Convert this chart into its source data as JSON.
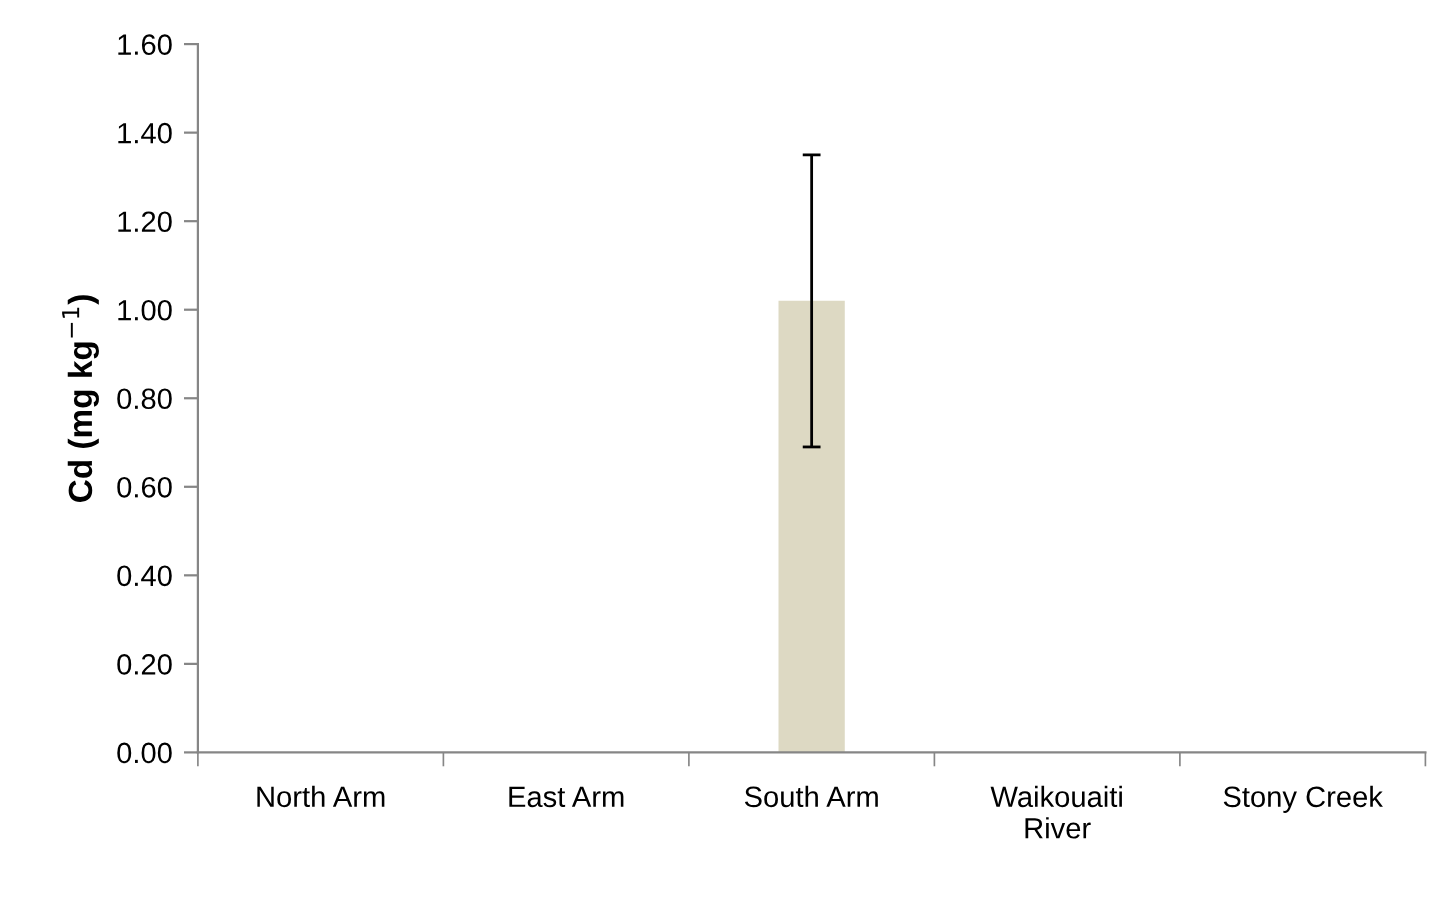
{
  "chart_data": {
    "type": "bar",
    "ylabel": "Cd (mg kg$^{−1}$)",
    "categories": [
      "North Arm",
      "East Arm",
      "South Arm",
      "Waikouaiti\nRiver",
      "Stony Creek"
    ],
    "values": [
      null,
      null,
      1.02,
      null,
      null
    ],
    "errors": [
      null,
      null,
      0.33,
      null,
      null
    ],
    "color": "#ddd9c3",
    "ylim": [
      0,
      1.6
    ],
    "yticks": [
      {
        "value": 0,
        "label": "0.00"
      },
      {
        "value": 0.2,
        "label": "0.20"
      },
      {
        "value": 0.4,
        "label": "0.40"
      },
      {
        "value": 0.6,
        "label": "0.60"
      },
      {
        "value": 0.8,
        "label": "0.80"
      },
      {
        "value": 1.0,
        "label": "1.00"
      },
      {
        "value": 1.2,
        "label": "1.20"
      },
      {
        "value": 1.4,
        "label": "1.40"
      },
      {
        "value": 1.6,
        "label": "1.60"
      }
    ],
    "grid": false,
    "legend": false
  }
}
